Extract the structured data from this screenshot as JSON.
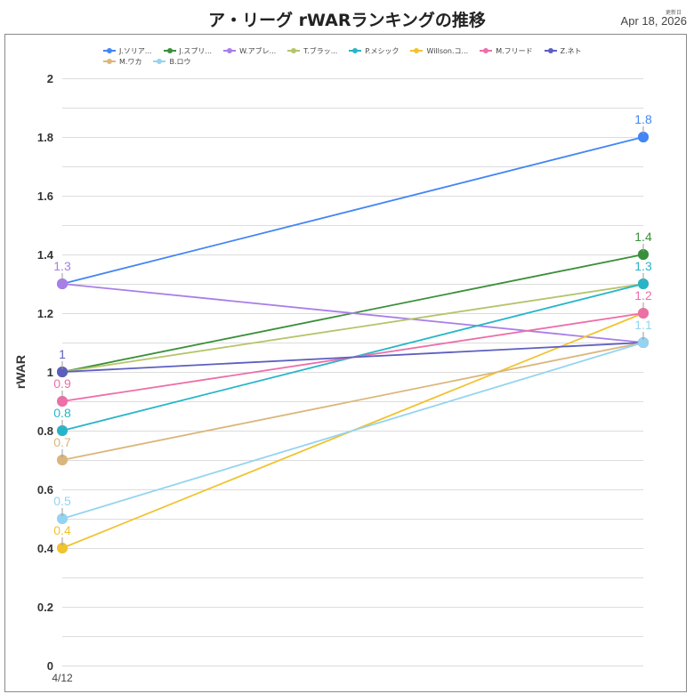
{
  "header": {
    "title": "ア・リーグ rWARランキングの推移",
    "updated_label": "更新日",
    "updated_date": "Apr 18, 2026"
  },
  "chart_data": {
    "type": "line",
    "title": "ア・リーグ rWARランキングの推移",
    "xlabel": "",
    "ylabel": "rWAR",
    "x": [
      "4/12",
      ""
    ],
    "x_tick_labels": [
      "4/12"
    ],
    "ylim": [
      0,
      2
    ],
    "y_ticks": [
      0,
      0.2,
      0.4,
      0.6,
      0.8,
      1,
      1.2,
      1.4,
      1.6,
      1.8,
      2
    ],
    "y_tick_labels": [
      "0",
      "0.2",
      "0.4",
      "0.6",
      "0.8",
      "1",
      "1.2",
      "1.4",
      "1.6",
      "1.8",
      "2"
    ],
    "grid": true,
    "minor_grid_step": 0.1,
    "legend_position": "top",
    "series": [
      {
        "name": "J.ソリア...",
        "color": "#4285f4",
        "values": [
          1.3,
          1.8
        ]
      },
      {
        "name": "J.スプリ...",
        "color": "#3a8f3a",
        "values": [
          1.0,
          1.4
        ]
      },
      {
        "name": "W.アブレ...",
        "color": "#a97ee8",
        "values": [
          1.3,
          1.1
        ]
      },
      {
        "name": "T.ブラッ...",
        "color": "#b5c46a",
        "values": [
          1.0,
          1.3
        ]
      },
      {
        "name": "P.メシック",
        "color": "#26b5c8",
        "values": [
          0.8,
          1.3
        ]
      },
      {
        "name": "Willson.コ...",
        "color": "#f0c331",
        "values": [
          0.4,
          1.2
        ]
      },
      {
        "name": "M.フリード",
        "color": "#ec6fa8",
        "values": [
          0.9,
          1.2
        ]
      },
      {
        "name": "Z.ネト",
        "color": "#5c5fbf",
        "values": [
          1.0,
          1.1
        ]
      },
      {
        "name": "M.ワカ",
        "color": "#dbb67c",
        "values": [
          0.7,
          1.1
        ]
      },
      {
        "name": "B.ロウ",
        "color": "#94d4f0",
        "values": [
          0.5,
          1.1
        ]
      }
    ],
    "data_labels": {
      "left": [
        {
          "text": "1.3",
          "color": "#a97ee8",
          "value": 1.3
        },
        {
          "text": "1",
          "color": "#5c5fbf",
          "value": 1.0
        },
        {
          "text": "0.9",
          "color": "#ec6fa8",
          "value": 0.9
        },
        {
          "text": "0.8",
          "color": "#26b5c8",
          "value": 0.8
        },
        {
          "text": "0.7",
          "color": "#dbb67c",
          "value": 0.7
        },
        {
          "text": "0.5",
          "color": "#94d4f0",
          "value": 0.5
        },
        {
          "text": "0.4",
          "color": "#f0c331",
          "value": 0.4
        }
      ],
      "right": [
        {
          "text": "1.8",
          "color": "#4285f4",
          "value": 1.8
        },
        {
          "text": "1.4",
          "color": "#3a8f3a",
          "value": 1.4
        },
        {
          "text": "1.3",
          "color": "#26b5c8",
          "value": 1.3
        },
        {
          "text": "1.2",
          "color": "#ec6fa8",
          "value": 1.2
        },
        {
          "text": "1.1",
          "color": "#94d4f0",
          "value": 1.1
        }
      ]
    }
  }
}
